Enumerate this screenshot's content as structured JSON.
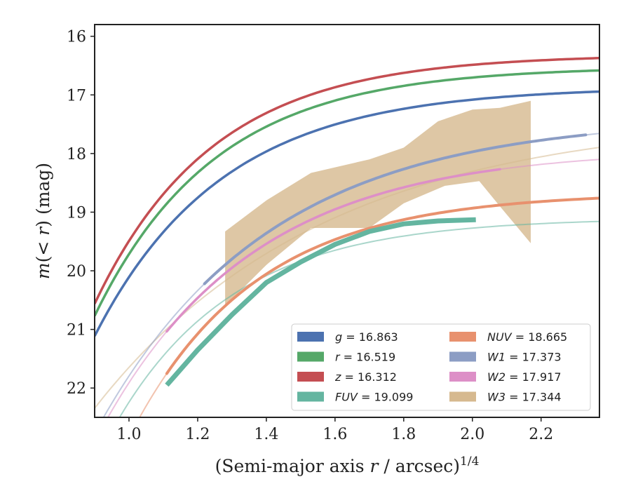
{
  "chart_data": {
    "type": "line",
    "xlabel": "(Semi-major axis r / arcsec)",
    "xlabel_parts": {
      "prefix": "(Semi-major axis ",
      "var": "r",
      "suffix": " / arcsec)",
      "sup": "1/4"
    },
    "ylabel_parts": {
      "var": "m",
      "paren_open": "(",
      "lt": "< ",
      "r": "r",
      "paren_close": ")",
      "unit": " (mag)"
    },
    "xlim": [
      0.9,
      2.37
    ],
    "ylim": [
      22.5,
      15.8
    ],
    "y_inverted": true,
    "xticks": [
      "1.0",
      "1.2",
      "1.4",
      "1.6",
      "1.8",
      "2.0",
      "2.2"
    ],
    "yticks": [
      "16",
      "17",
      "18",
      "19",
      "20",
      "21",
      "22"
    ],
    "legend_position": "lower-right",
    "legend_columns": 2,
    "series": [
      {
        "name": "g",
        "label_var": "g",
        "label_value": "= 16.863",
        "color": "#4c72b0",
        "asymptote": 16.863,
        "data_range": [
          0.9,
          2.37
        ]
      },
      {
        "name": "r",
        "label_var": "r",
        "label_value": "= 16.519",
        "color": "#55a868",
        "asymptote": 16.519,
        "data_range": [
          0.9,
          2.37
        ]
      },
      {
        "name": "z",
        "label_var": "z",
        "label_value": "= 16.312",
        "color": "#c44e52",
        "asymptote": 16.312,
        "data_range": [
          0.9,
          2.37
        ]
      },
      {
        "name": "FUV",
        "label_var": "FUV",
        "label_value": "= 19.099",
        "color": "#64b5a0",
        "asymptote": 19.099,
        "data_range": [
          1.11,
          2.01
        ],
        "points": [
          [
            1.11,
            21.95
          ],
          [
            1.2,
            21.35
          ],
          [
            1.3,
            20.75
          ],
          [
            1.4,
            20.2
          ],
          [
            1.5,
            19.85
          ],
          [
            1.6,
            19.55
          ],
          [
            1.7,
            19.33
          ],
          [
            1.8,
            19.2
          ],
          [
            1.9,
            19.15
          ],
          [
            2.01,
            19.13
          ]
        ]
      },
      {
        "name": "NUV",
        "label_var": "NUV",
        "label_value": "= 18.665",
        "color": "#e8916e",
        "asymptote": 18.665,
        "data_range": [
          1.11,
          2.37
        ]
      },
      {
        "name": "W1",
        "label_var": "W1",
        "label_value": "= 17.373",
        "color": "#8c9dc4",
        "asymptote": 17.373,
        "data_range": [
          1.0,
          2.37
        ]
      },
      {
        "name": "W2",
        "label_var": "W2",
        "label_value": "= 17.917",
        "color": "#dd8fc7",
        "asymptote": 17.917,
        "data_range": [
          1.0,
          2.37
        ]
      },
      {
        "name": "W3",
        "label_var": "W3",
        "label_value": "= 17.344",
        "color": "#d6b98f",
        "asymptote": 17.344,
        "data_range": [
          1.28,
          2.17
        ],
        "band_upper": [
          [
            1.28,
            19.33
          ],
          [
            1.4,
            18.8
          ],
          [
            1.53,
            18.33
          ],
          [
            1.7,
            18.1
          ],
          [
            1.8,
            17.9
          ],
          [
            1.9,
            17.45
          ],
          [
            2.0,
            17.25
          ],
          [
            2.08,
            17.22
          ],
          [
            2.17,
            17.1
          ]
        ],
        "band_lower": [
          [
            1.28,
            20.6
          ],
          [
            1.4,
            19.9
          ],
          [
            1.53,
            19.27
          ],
          [
            1.7,
            19.27
          ],
          [
            1.8,
            18.85
          ],
          [
            1.92,
            18.55
          ],
          [
            2.02,
            18.47
          ],
          [
            2.08,
            18.9
          ],
          [
            2.17,
            19.53
          ]
        ]
      }
    ]
  }
}
